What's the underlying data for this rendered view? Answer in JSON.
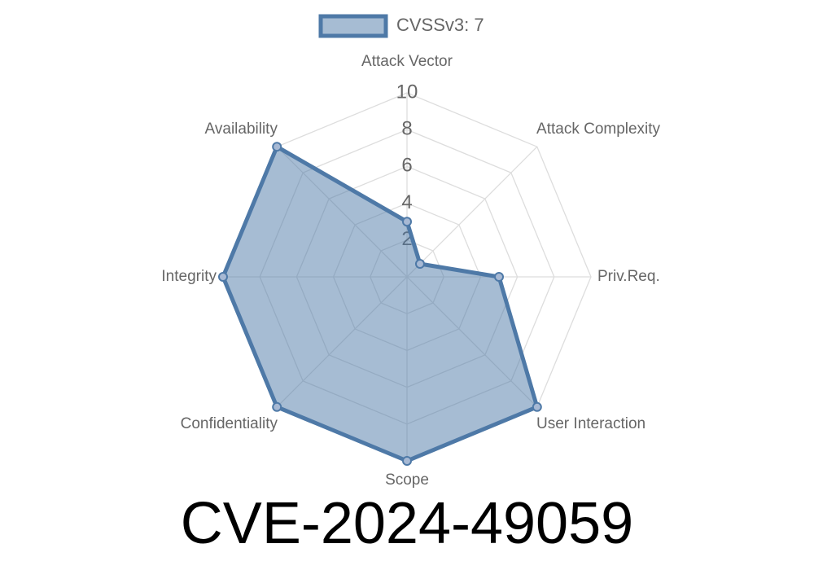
{
  "chart_data": {
    "type": "radar",
    "title": "CVE-2024-49059",
    "categories": [
      "Attack Vector",
      "Attack Complexity",
      "Priv.Req.",
      "User Interaction",
      "Scope",
      "Confidentiality",
      "Integrity",
      "Availability"
    ],
    "series": [
      {
        "name": "CVSSv3: 7",
        "color": "#4e79a7",
        "values": [
          3,
          1,
          5,
          10,
          10,
          10,
          10,
          10
        ]
      }
    ],
    "rlim": [
      0,
      10
    ],
    "rticks": [
      2,
      4,
      6,
      8,
      10
    ],
    "grid": true,
    "legend": "top"
  }
}
